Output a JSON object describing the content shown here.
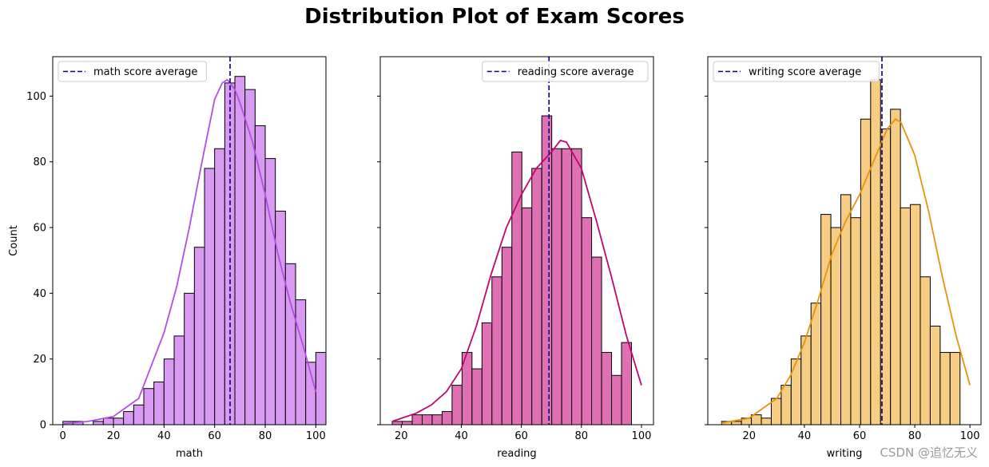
{
  "title": "Distribution Plot of Exam Scores",
  "watermark": "CSDN @追忆无义",
  "chart_data": [
    {
      "type": "histogram",
      "xlabel": "math",
      "ylabel": "Count",
      "xlim": [
        -4,
        104
      ],
      "ylim": [
        0,
        112
      ],
      "xticks": [
        0,
        20,
        40,
        60,
        80,
        100
      ],
      "yticks": [
        0,
        20,
        40,
        60,
        80,
        100
      ],
      "bin_start": 0,
      "bin_width": 4,
      "counts": [
        1,
        1,
        0,
        1,
        2,
        2,
        4,
        6,
        11,
        13,
        20,
        27,
        40,
        54,
        78,
        84,
        104,
        106,
        102,
        91,
        81,
        65,
        49,
        38,
        19,
        22
      ],
      "average": 66.1,
      "legend_label": "math score average",
      "legend_position": "top-left",
      "bar_color": "#d99af2",
      "kde_color": "#b24ee6",
      "kde": [
        [
          0,
          0.3
        ],
        [
          10,
          1
        ],
        [
          20,
          2.5
        ],
        [
          30,
          8
        ],
        [
          40,
          28
        ],
        [
          45,
          42
        ],
        [
          50,
          60
        ],
        [
          55,
          80
        ],
        [
          60,
          99
        ],
        [
          63,
          104
        ],
        [
          65,
          105
        ],
        [
          68,
          102
        ],
        [
          70,
          98
        ],
        [
          75,
          86
        ],
        [
          80,
          70
        ],
        [
          85,
          52
        ],
        [
          90,
          37
        ],
        [
          95,
          24
        ],
        [
          100,
          10
        ]
      ]
    },
    {
      "type": "histogram",
      "xlabel": "reading",
      "ylabel": "",
      "xlim": [
        13,
        104
      ],
      "ylim": [
        0,
        112
      ],
      "xticks": [
        20,
        40,
        60,
        80,
        100
      ],
      "yticks": [
        0,
        20,
        40,
        60,
        80,
        100
      ],
      "bin_start": 17,
      "bin_width": 3.32,
      "counts": [
        1,
        1,
        3,
        3,
        3,
        4,
        12,
        22,
        17,
        31,
        45,
        54,
        83,
        66,
        78,
        94,
        84,
        84,
        84,
        63,
        51,
        22,
        15,
        25
      ],
      "average": 69.2,
      "legend_label": "reading score average",
      "legend_position": "top-right",
      "bar_color": "#e070b4",
      "kde_color": "#c0076e",
      "kde": [
        [
          17,
          1
        ],
        [
          25,
          3.5
        ],
        [
          30,
          6
        ],
        [
          35,
          10
        ],
        [
          40,
          17
        ],
        [
          45,
          30
        ],
        [
          50,
          46
        ],
        [
          55,
          60
        ],
        [
          60,
          70
        ],
        [
          65,
          78
        ],
        [
          70,
          83
        ],
        [
          73,
          86.5
        ],
        [
          75,
          86
        ],
        [
          80,
          78
        ],
        [
          85,
          62
        ],
        [
          90,
          45
        ],
        [
          95,
          27
        ],
        [
          100,
          12
        ]
      ]
    },
    {
      "type": "histogram",
      "xlabel": "writing",
      "ylabel": "",
      "xlim": [
        5,
        104
      ],
      "ylim": [
        0,
        112
      ],
      "xticks": [
        20,
        40,
        60,
        80,
        100
      ],
      "yticks": [
        0,
        20,
        40,
        60,
        80,
        100
      ],
      "bin_start": 10,
      "bin_width": 3.6,
      "counts": [
        1,
        1,
        2,
        3,
        2,
        8,
        12,
        20,
        27,
        37,
        64,
        60,
        70,
        63,
        93,
        105,
        90,
        96,
        66,
        67,
        45,
        30,
        22,
        22
      ],
      "average": 68.1,
      "legend_label": "writing score average",
      "legend_position": "top-left",
      "bar_color": "#f6cd82",
      "kde_color": "#e8940a",
      "kde": [
        [
          10,
          0.5
        ],
        [
          20,
          2
        ],
        [
          30,
          8
        ],
        [
          35,
          15
        ],
        [
          40,
          25
        ],
        [
          45,
          38
        ],
        [
          50,
          52
        ],
        [
          55,
          62
        ],
        [
          60,
          70
        ],
        [
          65,
          80
        ],
        [
          70,
          90
        ],
        [
          73,
          93
        ],
        [
          75,
          92
        ],
        [
          80,
          82
        ],
        [
          85,
          65
        ],
        [
          90,
          45
        ],
        [
          95,
          27
        ],
        [
          100,
          12
        ]
      ]
    }
  ]
}
